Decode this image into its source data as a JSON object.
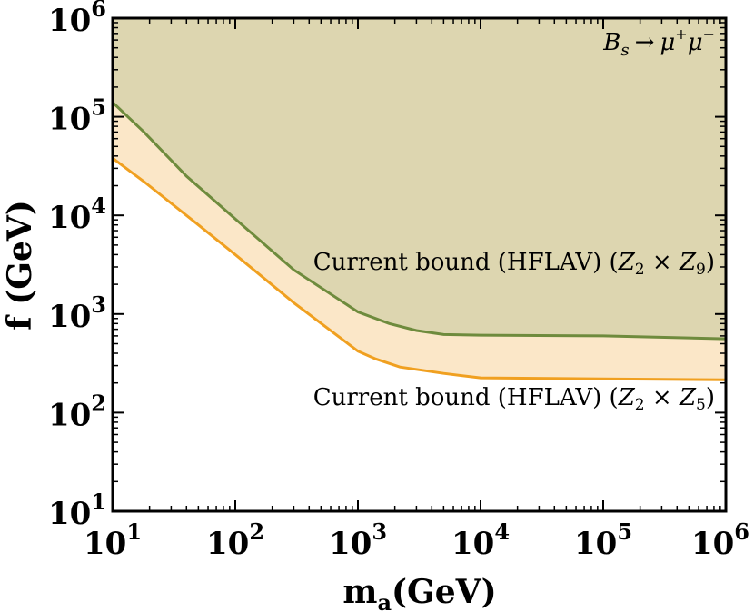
{
  "chart_data": {
    "type": "area",
    "title": "",
    "xlabel": "m",
    "xlabel_sub": "a",
    "xlabel_unit": "(GeV)",
    "ylabel": "f (GeV)",
    "x_scale": "log",
    "y_scale": "log",
    "xlim": [
      10,
      1000000
    ],
    "ylim": [
      10,
      1000000
    ],
    "x_ticks": [
      {
        "value": 10,
        "base": "10",
        "exp": "1"
      },
      {
        "value": 100,
        "base": "10",
        "exp": "2"
      },
      {
        "value": 1000,
        "base": "10",
        "exp": "3"
      },
      {
        "value": 10000,
        "base": "10",
        "exp": "4"
      },
      {
        "value": 100000,
        "base": "10",
        "exp": "5"
      },
      {
        "value": 1000000,
        "base": "10",
        "exp": "6"
      }
    ],
    "y_ticks": [
      {
        "value": 10,
        "base": "10",
        "exp": "1"
      },
      {
        "value": 100,
        "base": "10",
        "exp": "2"
      },
      {
        "value": 1000,
        "base": "10",
        "exp": "3"
      },
      {
        "value": 10000,
        "base": "10",
        "exp": "4"
      },
      {
        "value": 100000,
        "base": "10",
        "exp": "5"
      },
      {
        "value": 1000000,
        "base": "10",
        "exp": "6"
      }
    ],
    "process_label": {
      "B": "B",
      "B_sub": "s",
      "arrow": "→",
      "mu1": "μ",
      "mu1_sup": "+",
      "mu2": "μ",
      "mu2_sup": "−"
    },
    "series": [
      {
        "name": "Current bound (HFLAV) (Z2 × Z9)",
        "label_parts": {
          "prefix": "Current bound (HFLAV) (",
          "Z": "Z",
          "sub1": "2",
          "times": " × ",
          "Z2": "Z",
          "sub2": "9",
          "suffix": ")"
        },
        "line_color": "#6e8b3d",
        "fill_color": "#ddd6b0",
        "x": [
          10,
          18,
          40,
          100,
          300,
          1000,
          1800,
          3000,
          5000,
          10000,
          100000,
          1000000
        ],
        "y": [
          140000,
          70000,
          25000,
          9200,
          2800,
          1050,
          800,
          680,
          620,
          610,
          600,
          560
        ]
      },
      {
        "name": "Current bound (HFLAV) (Z2 × Z5)",
        "label_parts": {
          "prefix": "Current bound (HFLAV) (",
          "Z": "Z",
          "sub1": "2",
          "times": " × ",
          "Z2": "Z",
          "sub2": "5",
          "suffix": ")"
        },
        "line_color": "#f0a020",
        "fill_color": "#fbe7c8",
        "x": [
          10,
          18,
          50,
          100,
          300,
          1000,
          1400,
          2200,
          5000,
          10000,
          100000,
          1000000
        ],
        "y": [
          38000,
          22000,
          8000,
          4000,
          1300,
          420,
          350,
          290,
          250,
          225,
          220,
          215
        ]
      }
    ]
  }
}
